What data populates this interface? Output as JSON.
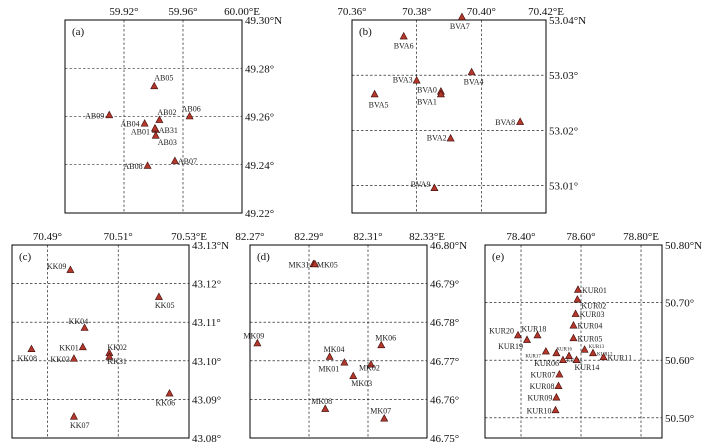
{
  "figure": {
    "marker_color": "#b5372b",
    "marker_shape": "triangle",
    "grid_style": "dashed"
  },
  "chart_data": [
    {
      "type": "scatter",
      "panel": "(a)",
      "xlim": [
        59.88,
        60.0
      ],
      "ylim": [
        49.22,
        49.3
      ],
      "x_ticks": [
        {
          "value": 59.92,
          "label": "59.92°"
        },
        {
          "value": 59.96,
          "label": "59.96°"
        },
        {
          "value": 60.0,
          "label": "60.00°E"
        }
      ],
      "y_ticks": [
        {
          "value": 49.3,
          "label": "49.30°N"
        },
        {
          "value": 49.28,
          "label": "49.28°"
        },
        {
          "value": 49.26,
          "label": "49.26°"
        },
        {
          "value": 49.24,
          "label": "49.24°"
        },
        {
          "value": 49.22,
          "label": "49.22°"
        }
      ],
      "grid_x": [
        59.92,
        59.96
      ],
      "grid_y": [
        49.28,
        49.26,
        49.24
      ],
      "points": [
        {
          "name": "AB05",
          "lon": 59.9405,
          "lat": 49.2725
        },
        {
          "name": "AB09",
          "lon": 59.91,
          "lat": 49.2605
        },
        {
          "name": "AB02",
          "lon": 59.944,
          "lat": 49.2585
        },
        {
          "name": "AB06",
          "lon": 59.9645,
          "lat": 49.26
        },
        {
          "name": "AB04",
          "lon": 59.934,
          "lat": 49.257
        },
        {
          "name": "AB31",
          "lon": 59.9415,
          "lat": 49.2545
        },
        {
          "name": "AB01",
          "lon": 59.941,
          "lat": 49.255
        },
        {
          "name": "AB03",
          "lon": 59.9415,
          "lat": 49.252
        },
        {
          "name": "AB07",
          "lon": 59.9545,
          "lat": 49.2415
        },
        {
          "name": "AB08",
          "lon": 59.936,
          "lat": 49.2395
        }
      ]
    },
    {
      "type": "scatter",
      "panel": "(b)",
      "xlim": [
        70.36,
        70.42
      ],
      "ylim": [
        53.005,
        53.04
      ],
      "x_ticks": [
        {
          "value": 70.36,
          "label": "70.36°"
        },
        {
          "value": 70.38,
          "label": "70.38°"
        },
        {
          "value": 70.4,
          "label": "70.40°"
        },
        {
          "value": 70.42,
          "label": "70.42°E"
        }
      ],
      "y_ticks": [
        {
          "value": 53.04,
          "label": "53.04°N"
        },
        {
          "value": 53.03,
          "label": "53.03°"
        },
        {
          "value": 53.02,
          "label": "53.02°"
        },
        {
          "value": 53.01,
          "label": "53.01°"
        }
      ],
      "grid_x": [
        70.38,
        70.4
      ],
      "grid_y": [
        53.03,
        53.02,
        53.01
      ],
      "points": [
        {
          "name": "BVA7",
          "lon": 70.394,
          "lat": 53.0405
        },
        {
          "name": "BVA6",
          "lon": 70.376,
          "lat": 53.037
        },
        {
          "name": "BVA3",
          "lon": 70.38,
          "lat": 53.029
        },
        {
          "name": "BVA4",
          "lon": 70.397,
          "lat": 53.0305
        },
        {
          "name": "BVA5",
          "lon": 70.367,
          "lat": 53.0265
        },
        {
          "name": "BVA0",
          "lon": 70.3875,
          "lat": 53.027
        },
        {
          "name": "BVA1",
          "lon": 70.3875,
          "lat": 53.0265
        },
        {
          "name": "BVA8",
          "lon": 70.412,
          "lat": 53.0215
        },
        {
          "name": "BVA2",
          "lon": 70.3905,
          "lat": 53.0185
        },
        {
          "name": "BVA9",
          "lon": 70.3855,
          "lat": 53.0095
        }
      ]
    },
    {
      "type": "scatter",
      "panel": "(c)",
      "xlim": [
        70.48,
        70.53
      ],
      "ylim": [
        43.08,
        43.13
      ],
      "x_ticks": [
        {
          "value": 70.49,
          "label": "70.49°"
        },
        {
          "value": 70.51,
          "label": "70.51°"
        },
        {
          "value": 70.53,
          "label": "70.53°E"
        }
      ],
      "y_ticks": [
        {
          "value": 43.13,
          "label": "43.13°N"
        },
        {
          "value": 43.12,
          "label": "43.12°"
        },
        {
          "value": 43.11,
          "label": "43.11°"
        },
        {
          "value": 43.1,
          "label": "43.10°"
        },
        {
          "value": 43.09,
          "label": "43.09°"
        },
        {
          "value": 43.08,
          "label": "43.08°"
        }
      ],
      "grid_x": [
        70.49,
        70.51
      ],
      "grid_y": [
        43.12,
        43.11,
        43.1,
        43.09
      ],
      "points": [
        {
          "name": "KK09",
          "lon": 70.4965,
          "lat": 43.1235
        },
        {
          "name": "KK05",
          "lon": 70.5215,
          "lat": 43.1165
        },
        {
          "name": "KK04",
          "lon": 70.5005,
          "lat": 43.1085
        },
        {
          "name": "KK08",
          "lon": 70.4855,
          "lat": 43.103
        },
        {
          "name": "KK01",
          "lon": 70.5,
          "lat": 43.1035
        },
        {
          "name": "KK03",
          "lon": 70.4975,
          "lat": 43.1005
        },
        {
          "name": "KK02",
          "lon": 70.5075,
          "lat": 43.102
        },
        {
          "name": "KK31",
          "lon": 70.5075,
          "lat": 43.101
        },
        {
          "name": "KK06",
          "lon": 70.5245,
          "lat": 43.0915
        },
        {
          "name": "KK07",
          "lon": 70.4975,
          "lat": 43.0855
        }
      ]
    },
    {
      "type": "scatter",
      "panel": "(d)",
      "xlim": [
        82.27,
        82.33
      ],
      "ylim": [
        46.75,
        46.8
      ],
      "x_ticks": [
        {
          "value": 82.27,
          "label": "82.27°"
        },
        {
          "value": 82.29,
          "label": "82.29°"
        },
        {
          "value": 82.31,
          "label": "82.31°"
        },
        {
          "value": 82.33,
          "label": "82.33°E"
        }
      ],
      "y_ticks": [
        {
          "value": 46.8,
          "label": "46.80°N"
        },
        {
          "value": 46.79,
          "label": "46.79°"
        },
        {
          "value": 46.78,
          "label": "46.78°"
        },
        {
          "value": 46.77,
          "label": "46.77°"
        },
        {
          "value": 46.76,
          "label": "46.76°"
        },
        {
          "value": 46.75,
          "label": "46.75°"
        }
      ],
      "grid_x": [
        82.29,
        82.31
      ],
      "grid_y": [
        46.79,
        46.78,
        46.77,
        46.76
      ],
      "points": [
        {
          "name": "MK31",
          "lon": 82.2915,
          "lat": 46.795
        },
        {
          "name": "MK05",
          "lon": 82.292,
          "lat": 46.795
        },
        {
          "name": "MK09",
          "lon": 82.2725,
          "lat": 46.7745
        },
        {
          "name": "MK06",
          "lon": 82.3145,
          "lat": 46.774
        },
        {
          "name": "MK04",
          "lon": 82.297,
          "lat": 46.771
        },
        {
          "name": "MK01",
          "lon": 82.302,
          "lat": 46.7695
        },
        {
          "name": "MK02",
          "lon": 82.311,
          "lat": 46.769
        },
        {
          "name": "MK03",
          "lon": 82.305,
          "lat": 46.766
        },
        {
          "name": "MK08",
          "lon": 82.2955,
          "lat": 46.7575
        },
        {
          "name": "MK07",
          "lon": 82.3155,
          "lat": 46.755
        }
      ]
    },
    {
      "type": "scatter",
      "panel": "(e)",
      "xlim": [
        78.28,
        78.87
      ],
      "ylim": [
        50.465,
        50.8
      ],
      "x_ticks": [
        {
          "value": 78.4,
          "label": "78.40°"
        },
        {
          "value": 78.6,
          "label": "78.60°"
        },
        {
          "value": 78.8,
          "label": "78.80°E"
        }
      ],
      "y_ticks": [
        {
          "value": 50.8,
          "label": "50.80°N"
        },
        {
          "value": 50.7,
          "label": "50.70°"
        },
        {
          "value": 50.6,
          "label": "50.60°"
        },
        {
          "value": 50.5,
          "label": "50.50°"
        }
      ],
      "grid_x": [
        78.4,
        78.6,
        78.8
      ],
      "grid_y": [
        50.7,
        50.6,
        50.5
      ],
      "points": [
        {
          "name": "KUR01",
          "lon": 78.59,
          "lat": 50.722
        },
        {
          "name": "KUR02",
          "lon": 78.588,
          "lat": 50.705
        },
        {
          "name": "KUR03",
          "lon": 78.582,
          "lat": 50.68
        },
        {
          "name": "KUR04",
          "lon": 78.575,
          "lat": 50.66
        },
        {
          "name": "KUR05",
          "lon": 78.575,
          "lat": 50.638
        },
        {
          "name": "KUR20",
          "lon": 78.39,
          "lat": 50.643
        },
        {
          "name": "KUR18",
          "lon": 78.455,
          "lat": 50.643
        },
        {
          "name": "KUR19",
          "lon": 78.42,
          "lat": 50.635
        },
        {
          "name": "KUR17",
          "lon": 78.483,
          "lat": 50.615
        },
        {
          "name": "KUR16",
          "lon": 78.518,
          "lat": 50.612
        },
        {
          "name": "KUR15",
          "lon": 78.56,
          "lat": 50.607
        },
        {
          "name": "KUR13",
          "lon": 78.612,
          "lat": 50.618
        },
        {
          "name": "KUR12",
          "lon": 78.64,
          "lat": 50.612
        },
        {
          "name": "KUR11",
          "lon": 78.675,
          "lat": 50.605
        },
        {
          "name": "KUR14",
          "lon": 78.585,
          "lat": 50.6
        },
        {
          "name": "KUR06",
          "lon": 78.54,
          "lat": 50.6
        },
        {
          "name": "KUR07",
          "lon": 78.528,
          "lat": 50.575
        },
        {
          "name": "KUR08",
          "lon": 78.525,
          "lat": 50.555
        },
        {
          "name": "KUR09",
          "lon": 78.518,
          "lat": 50.535
        },
        {
          "name": "KUR10",
          "lon": 78.515,
          "lat": 50.513
        }
      ]
    }
  ]
}
